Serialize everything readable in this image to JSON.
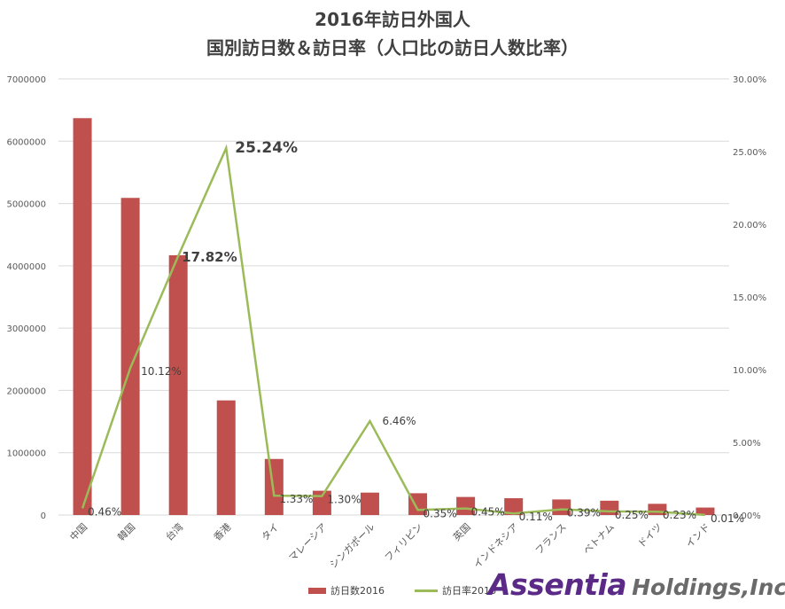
{
  "chart_data": {
    "type": "bar+line",
    "title_line1": "2016年訪日外国人",
    "title_line2": "国別訪日数＆訪日率（人口比の訪日人数比率）",
    "categories": [
      "中国",
      "韓国",
      "台湾",
      "香港",
      "タイ",
      "マレーシア",
      "シンガポール",
      "フィリピン",
      "英国",
      "インドネシア",
      "フランス",
      "ベトナム",
      "ドイツ",
      "インド"
    ],
    "series": [
      {
        "name": "訪日数2016",
        "type": "bar",
        "axis": "left",
        "values": [
          6370000,
          5090000,
          4170000,
          1840000,
          900000,
          390000,
          360000,
          350000,
          290000,
          270000,
          250000,
          230000,
          180000,
          120000
        ]
      },
      {
        "name": "訪日率2016",
        "type": "line",
        "axis": "right",
        "values": [
          0.46,
          10.12,
          17.82,
          25.24,
          1.33,
          1.3,
          6.46,
          0.35,
          0.45,
          0.11,
          0.39,
          0.25,
          0.23,
          0.01
        ],
        "labels": [
          "0.46%",
          "10.12%",
          "17.82%",
          "25.24%",
          "1.33%",
          "1.30%",
          "6.46%",
          "0.35%",
          "0.45%",
          "0.11%",
          "0.39%",
          "0.25%",
          "0.23%",
          "0.01%"
        ]
      }
    ],
    "y_left": {
      "min": 0,
      "max": 7000000,
      "ticks": [
        "0",
        "1000000",
        "2000000",
        "3000000",
        "4000000",
        "5000000",
        "6000000",
        "7000000"
      ]
    },
    "y_right": {
      "min": 0,
      "max": 30,
      "ticks": [
        "0.00%",
        "5.00%",
        "10.00%",
        "15.00%",
        "20.00%",
        "25.00%",
        "30.00%"
      ]
    },
    "grid": true,
    "legend_position": "bottom",
    "colors": {
      "bar": "#c0504d",
      "line": "#9bbb59",
      "grid": "#d9d9d9",
      "text": "#595959"
    }
  },
  "watermark": {
    "main": "Assentia",
    "sub": "Holdings,Inc."
  }
}
